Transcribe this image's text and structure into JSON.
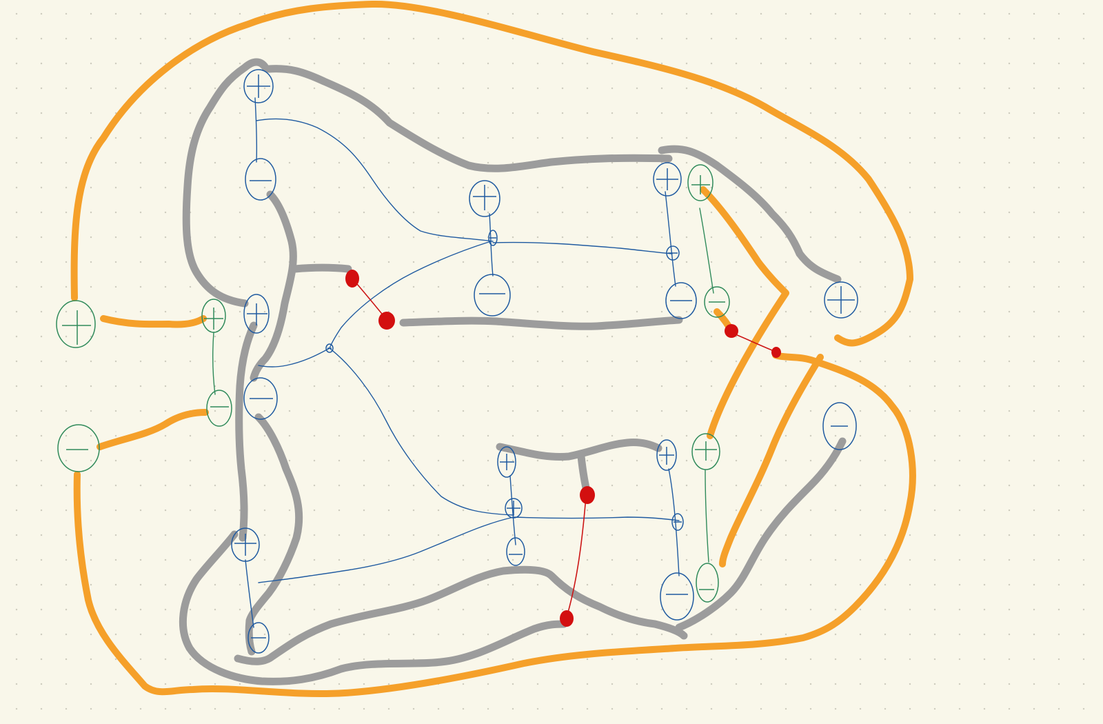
{
  "canvas": {
    "background": "#f9f7ea",
    "grid": "dotted",
    "ink_colors": {
      "gray_wire": "#9c9c9c",
      "orange_wire": "#f5a02a",
      "blue_thin_wire": "#1f5aa0",
      "green_thin_wire": "#2f8a5a",
      "red_connection": "#d30f0f"
    }
  },
  "symbols": {
    "plus": "+",
    "minus": "−"
  }
}
